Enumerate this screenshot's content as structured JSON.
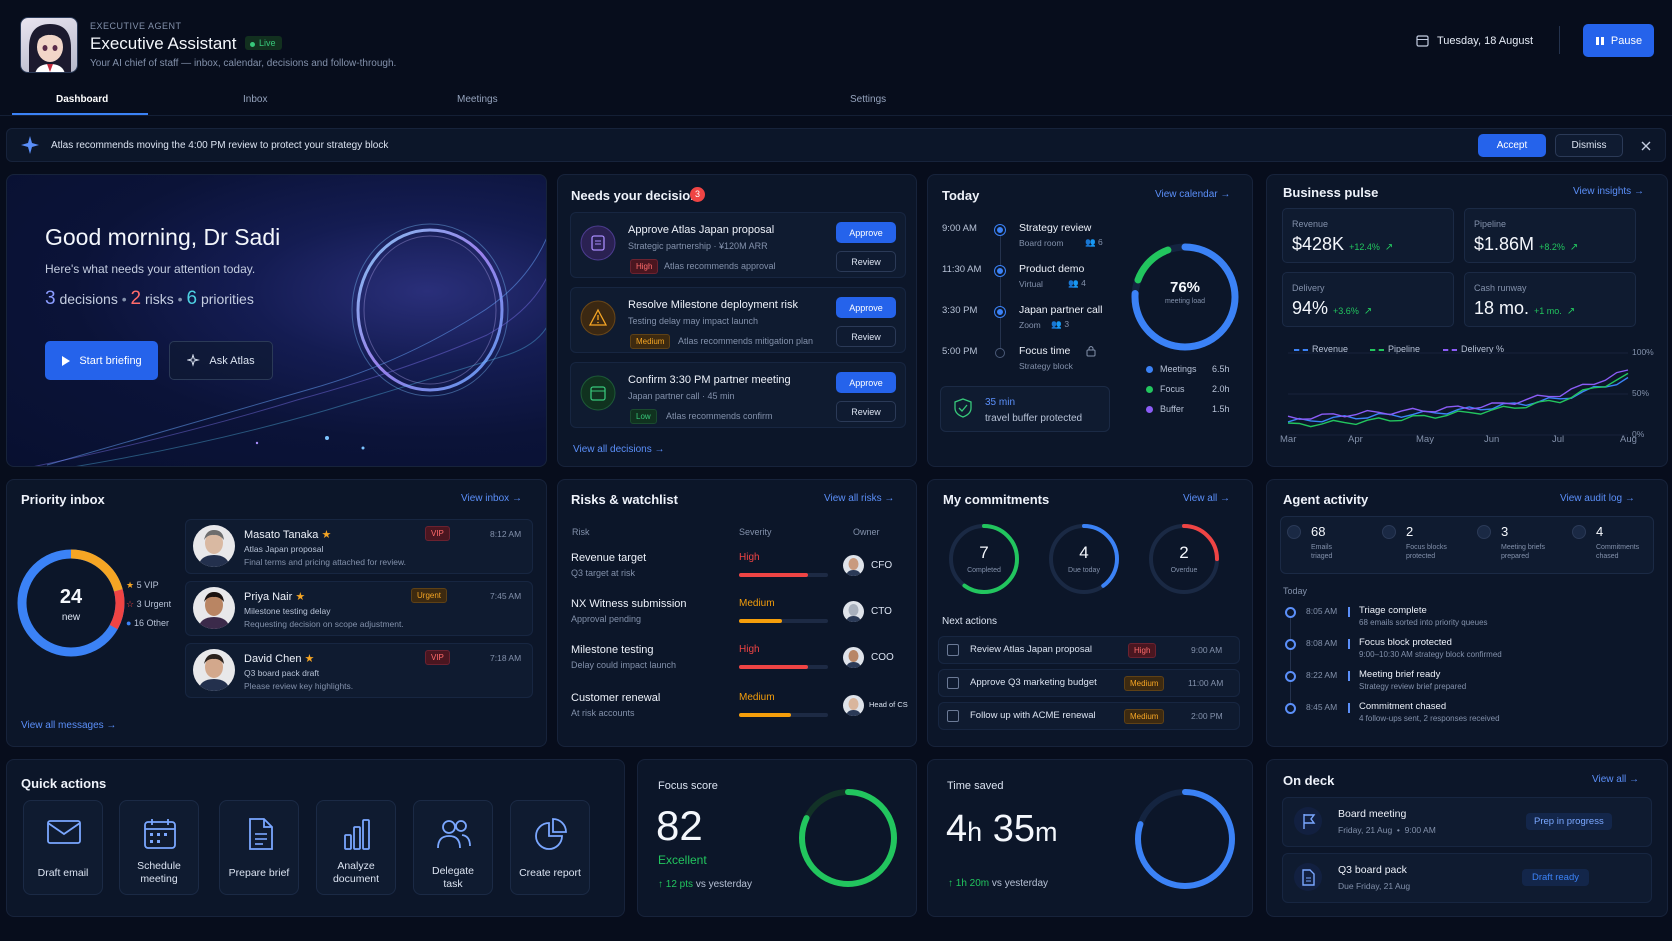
{
  "header": {
    "badge": "EXECUTIVE AGENT",
    "title": "Executive Assistant",
    "live": "Live",
    "subtitle": "Your AI chief of staff — inbox, calendar, decisions and follow-through.",
    "date": "Tuesday, 18 August",
    "pause": "Pause"
  },
  "tabs": [
    "Dashboard",
    "Inbox",
    "Meetings",
    "Settings"
  ],
  "banner": {
    "text": "Atlas recommends moving the 4:00 PM review to protect your strategy block",
    "accept": "Accept",
    "dismiss": "Dismiss"
  },
  "hero": {
    "greeting": "Good morning, Dr Sadi",
    "sub": "Here's what needs your attention today.",
    "d_num": "3",
    "d_lbl": "decisions",
    "r_num": "2",
    "r_lbl": "risks",
    "p_num": "6",
    "p_lbl": "priorities",
    "start": "Start briefing",
    "ask": "Ask Atlas"
  },
  "decisions": {
    "title": "Needs your decision",
    "count": "3",
    "items": [
      {
        "title": "Approve Atlas Japan proposal",
        "sub": "Strategic partnership · ¥120M ARR",
        "tag": "High",
        "note": "Atlas recommends approval"
      },
      {
        "title": "Resolve Milestone deployment risk",
        "sub": "Testing delay may impact launch",
        "tag": "Medium",
        "note": "Atlas recommends mitigation plan"
      },
      {
        "title": "Confirm 3:30 PM partner meeting",
        "sub": "Japan partner call · 45 min",
        "tag": "Low",
        "note": "Atlas recommends confirm"
      }
    ],
    "approve": "Approve",
    "review": "Review",
    "view_all": "View all decisions"
  },
  "today": {
    "title": "Today",
    "link": "View calendar",
    "events": [
      {
        "time": "9:00 AM",
        "title": "Strategy review",
        "sub": "Board room",
        "people": "6"
      },
      {
        "time": "11:30 AM",
        "title": "Product demo",
        "sub": "Virtual",
        "people": "4"
      },
      {
        "time": "3:30 PM",
        "title": "Japan partner call",
        "sub": "Zoom",
        "people": "3"
      },
      {
        "time": "5:00 PM",
        "title": "Focus time",
        "sub": "Strategy block",
        "people": ""
      }
    ],
    "load_value": "76%",
    "load_label": "meeting load",
    "load_fraction": 0.76,
    "legend": [
      {
        "name": "Meetings",
        "value": "6.5h",
        "color": "#3b82f6"
      },
      {
        "name": "Focus",
        "value": "2.0h",
        "color": "#22c55e"
      },
      {
        "name": "Buffer",
        "value": "1.5h",
        "color": "#8b5cf6"
      }
    ],
    "buffer_time": "35 min",
    "buffer_text": "travel buffer protected"
  },
  "pulse": {
    "title": "Business pulse",
    "link": "View insights",
    "kpis": [
      {
        "label": "Revenue",
        "value": "$428K",
        "delta": "+12.4%"
      },
      {
        "label": "Pipeline",
        "value": "$1.86M",
        "delta": "+8.2%"
      },
      {
        "label": "Delivery",
        "value": "94%",
        "delta": "+3.6%"
      },
      {
        "label": "Cash runway",
        "value": "18 mo.",
        "delta": "+1 mo."
      }
    ]
  },
  "chart_data": {
    "type": "line",
    "x": [
      "Mar",
      "Apr",
      "May",
      "Jun",
      "Jul",
      "Aug"
    ],
    "yticks": [
      "100%",
      "50%",
      "0%"
    ],
    "ylim": [
      0,
      100
    ],
    "series": [
      {
        "name": "Revenue",
        "color": "#3b82f6",
        "values": [
          16,
          22,
          26,
          34,
          44,
          68
        ]
      },
      {
        "name": "Pipeline",
        "color": "#22c55e",
        "values": [
          12,
          16,
          22,
          30,
          42,
          72
        ]
      },
      {
        "name": "Delivery %",
        "color": "#8b5cf6",
        "values": [
          20,
          26,
          30,
          36,
          50,
          78
        ]
      }
    ]
  },
  "inbox": {
    "title": "Priority inbox",
    "link": "View inbox",
    "count": "24",
    "count_label": "new",
    "legend": [
      {
        "label": "5 VIP",
        "color": "#f5a524"
      },
      {
        "label": "3 Urgent",
        "color": "#ef4444"
      },
      {
        "label": "16 Other",
        "color": "#3b82f6"
      }
    ],
    "messages": [
      {
        "name": "Masato Tanaka",
        "tag": "VIP",
        "time": "8:12 AM",
        "subject": "Atlas Japan proposal",
        "preview": "Final terms and pricing attached for review."
      },
      {
        "name": "Priya Nair",
        "tag": "Urgent",
        "time": "7:45 AM",
        "subject": "Milestone testing delay",
        "preview": "Requesting decision on scope adjustment."
      },
      {
        "name": "David Chen",
        "tag": "VIP",
        "time": "7:18 AM",
        "subject": "Q3 board pack draft",
        "preview": "Please review key highlights."
      }
    ],
    "view_all": "View all messages"
  },
  "risks": {
    "title": "Risks & watchlist",
    "link": "View all risks",
    "cols": [
      "Risk",
      "Severity",
      "Owner"
    ],
    "items": [
      {
        "title": "Revenue target",
        "sub": "Q3 target at risk",
        "sev": "High",
        "level": 0.78,
        "owner": "CFO"
      },
      {
        "title": "NX Witness submission",
        "sub": "Approval pending",
        "sev": "Medium",
        "level": 0.48,
        "owner": "CTO"
      },
      {
        "title": "Milestone testing",
        "sub": "Delay could impact launch",
        "sev": "High",
        "level": 0.78,
        "owner": "COO"
      },
      {
        "title": "Customer renewal",
        "sub": "At risk accounts",
        "sev": "Medium",
        "level": 0.58,
        "owner": "Head of CS"
      }
    ]
  },
  "commit": {
    "title": "My commitments",
    "link": "View all",
    "rings": [
      {
        "num": "7",
        "label": "Completed",
        "color": "#22c55e",
        "fraction": 0.6
      },
      {
        "num": "4",
        "label": "Due today",
        "color": "#3b82f6",
        "fraction": 0.4
      },
      {
        "num": "2",
        "label": "Overdue",
        "color": "#ef4444",
        "fraction": 0.25
      }
    ],
    "next": "Next actions",
    "actions": [
      {
        "text": "Review Atlas Japan proposal",
        "tag": "High",
        "time": "9:00 AM"
      },
      {
        "text": "Approve Q3 marketing budget",
        "tag": "Medium",
        "time": "11:00 AM"
      },
      {
        "text": "Follow up with ACME renewal",
        "tag": "Medium",
        "time": "2:00 PM"
      }
    ]
  },
  "agent": {
    "title": "Agent activity",
    "link": "View audit log",
    "stats": [
      {
        "num": "68",
        "l1": "Emails",
        "l2": "triaged"
      },
      {
        "num": "2",
        "l1": "Focus blocks",
        "l2": "protected"
      },
      {
        "num": "3",
        "l1": "Meeting briefs",
        "l2": "prepared"
      },
      {
        "num": "4",
        "l1": "Commitments",
        "l2": "chased"
      }
    ],
    "today": "Today",
    "log": [
      {
        "time": "8:05 AM",
        "title": "Triage complete",
        "sub": "68 emails sorted into priority queues"
      },
      {
        "time": "8:08 AM",
        "title": "Focus block protected",
        "sub": "9:00–10:30 AM strategy block confirmed"
      },
      {
        "time": "8:22 AM",
        "title": "Meeting brief ready",
        "sub": "Strategy review brief prepared"
      },
      {
        "time": "8:45 AM",
        "title": "Commitment chased",
        "sub": "4 follow-ups sent, 2 responses received"
      }
    ]
  },
  "quick": {
    "title": "Quick actions",
    "items": [
      {
        "l1": "Draft email",
        "l2": ""
      },
      {
        "l1": "Schedule",
        "l2": "meeting"
      },
      {
        "l1": "Prepare brief",
        "l2": ""
      },
      {
        "l1": "Analyze",
        "l2": "document"
      },
      {
        "l1": "Delegate",
        "l2": "task"
      },
      {
        "l1": "Create report",
        "l2": ""
      }
    ]
  },
  "focus": {
    "title": "Focus score",
    "value": "82",
    "rating": "Excellent",
    "delta": "12 pts",
    "vs": "vs yesterday",
    "fraction": 0.82
  },
  "saved": {
    "title": "Time saved",
    "h": "4",
    "m": "35",
    "delta": "1h 20m",
    "vs": "vs yesterday",
    "fraction": 0.8
  },
  "deck": {
    "title": "On deck",
    "link": "View all",
    "items": [
      {
        "title": "Board meeting",
        "sub": "Friday, 21 Aug  •  9:00 AM",
        "status": "Prep in progress"
      },
      {
        "title": "Q3 board pack",
        "sub": "Due Friday, 21 Aug",
        "status": "Draft ready"
      }
    ]
  }
}
